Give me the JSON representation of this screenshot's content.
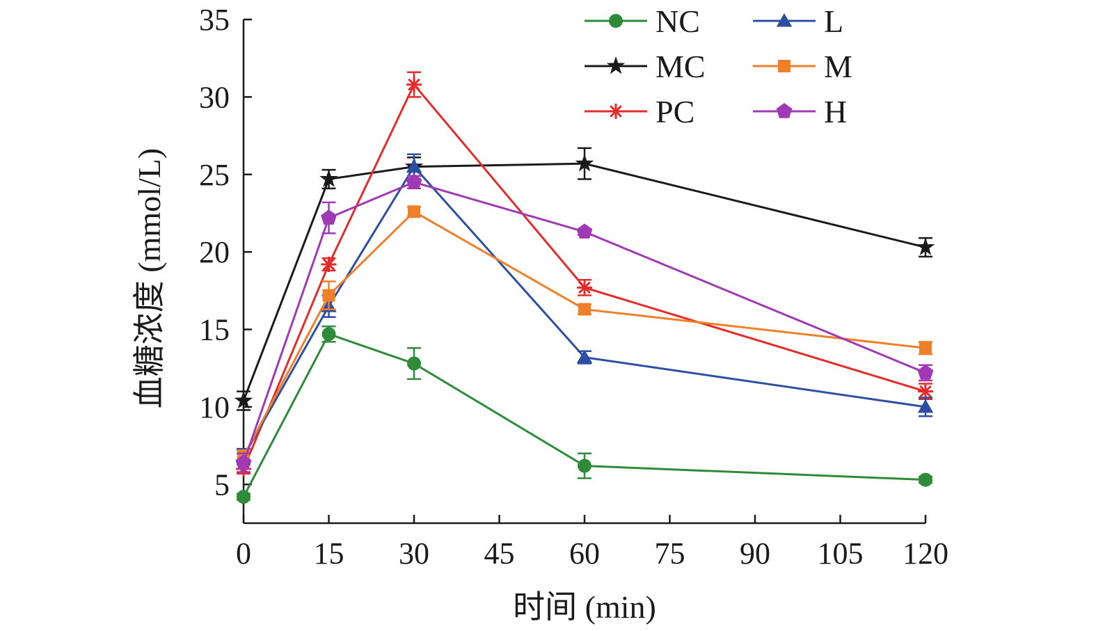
{
  "chart_data": {
    "type": "line",
    "xlabel": "时间 (min)",
    "ylabel": "血糖浓度 (mmol/L)",
    "xlim": [
      0,
      120
    ],
    "ylim": [
      2.5,
      35
    ],
    "xticks": [
      0,
      15,
      30,
      45,
      60,
      75,
      90,
      105,
      120
    ],
    "yticks": [
      5,
      10,
      15,
      20,
      25,
      30,
      35
    ],
    "grid": false,
    "legend_position": "top-right",
    "x": [
      0,
      15,
      30,
      60,
      120
    ],
    "series": [
      {
        "name": "NC",
        "color": "#2e8b3a",
        "marker": "circle",
        "values": [
          4.2,
          14.7,
          12.8,
          6.2,
          5.3
        ],
        "errors": [
          0.2,
          0.5,
          1.0,
          0.8,
          0.2
        ]
      },
      {
        "name": "MC",
        "color": "#1a1a1a",
        "marker": "star",
        "values": [
          10.4,
          24.7,
          25.5,
          25.7,
          20.3
        ],
        "errors": [
          0.6,
          0.6,
          0.6,
          1.0,
          0.6
        ]
      },
      {
        "name": "PC",
        "color": "#e62b2b",
        "marker": "asterisk",
        "values": [
          6.0,
          19.2,
          30.8,
          17.7,
          11.0
        ],
        "errors": [
          0.3,
          0.4,
          0.8,
          0.5,
          0.5
        ]
      },
      {
        "name": "L",
        "color": "#2c4fa3",
        "marker": "triangle",
        "values": [
          6.8,
          16.5,
          25.5,
          13.2,
          10.0
        ],
        "errors": [
          0.5,
          0.7,
          0.8,
          0.4,
          0.6
        ]
      },
      {
        "name": "M",
        "color": "#f07f2a",
        "marker": "square",
        "values": [
          6.8,
          17.2,
          22.6,
          16.3,
          13.8
        ],
        "errors": [
          0.4,
          0.9,
          0.3,
          0.3,
          0.4
        ]
      },
      {
        "name": "H",
        "color": "#a03ab4",
        "marker": "pentagon",
        "values": [
          6.4,
          22.2,
          24.5,
          21.3,
          12.2
        ],
        "errors": [
          0.6,
          1.0,
          0.4,
          0.2,
          0.5
        ]
      }
    ]
  }
}
